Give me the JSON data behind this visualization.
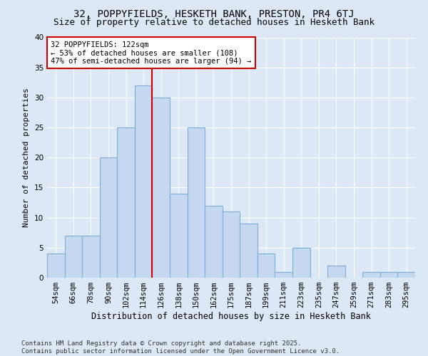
{
  "title1": "32, POPPYFIELDS, HESKETH BANK, PRESTON, PR4 6TJ",
  "title2": "Size of property relative to detached houses in Hesketh Bank",
  "xlabel": "Distribution of detached houses by size in Hesketh Bank",
  "ylabel": "Number of detached properties",
  "categories": [
    "54sqm",
    "66sqm",
    "78sqm",
    "90sqm",
    "102sqm",
    "114sqm",
    "126sqm",
    "138sqm",
    "150sqm",
    "162sqm",
    "175sqm",
    "187sqm",
    "199sqm",
    "211sqm",
    "223sqm",
    "235sqm",
    "247sqm",
    "259sqm",
    "271sqm",
    "283sqm",
    "295sqm"
  ],
  "values": [
    4,
    7,
    7,
    20,
    25,
    32,
    30,
    14,
    25,
    12,
    11,
    9,
    4,
    1,
    5,
    0,
    2,
    0,
    1,
    1,
    1
  ],
  "bar_color": "#c5d8f0",
  "bar_edge_color": "#7bafd4",
  "vline_x": 5.5,
  "vline_color": "#cc0000",
  "annotation_title": "32 POPPYFIELDS: 122sqm",
  "annotation_line2": "← 53% of detached houses are smaller (108)",
  "annotation_line3": "47% of semi-detached houses are larger (94) →",
  "annotation_box_edge": "#cc0000",
  "ylim": [
    0,
    40
  ],
  "yticks": [
    0,
    5,
    10,
    15,
    20,
    25,
    30,
    35,
    40
  ],
  "footer_line1": "Contains HM Land Registry data © Crown copyright and database right 2025.",
  "footer_line2": "Contains public sector information licensed under the Open Government Licence v3.0.",
  "bg_color": "#dce8f5",
  "plot_bg_color": "#dce8f5",
  "title1_fontsize": 10,
  "title2_fontsize": 9,
  "xlabel_fontsize": 8.5,
  "ylabel_fontsize": 8,
  "tick_fontsize": 7.5,
  "footer_fontsize": 6.5,
  "annot_fontsize": 7.5
}
